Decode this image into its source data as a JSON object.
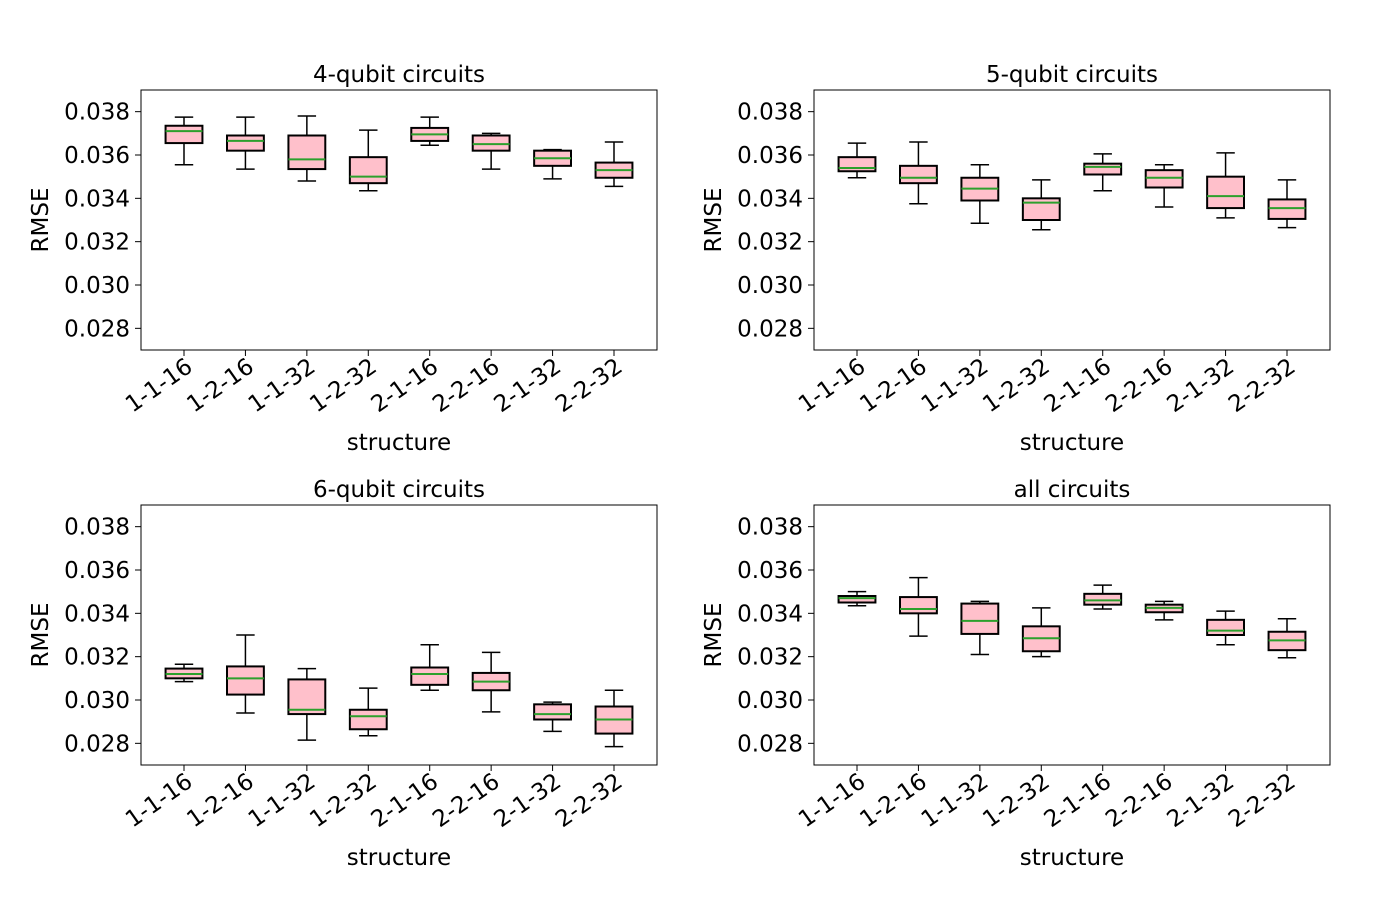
{
  "chart_data": [
    {
      "type": "box",
      "title": "4-qubit circuits",
      "xlabel": "structure",
      "ylabel": "RMSE",
      "ylim": [
        0.027,
        0.039
      ],
      "yticks": [
        "0.028",
        "0.030",
        "0.032",
        "0.034",
        "0.036",
        "0.038"
      ],
      "categories": [
        "1-1-16",
        "1-2-16",
        "1-1-32",
        "1-2-32",
        "2-1-16",
        "2-2-16",
        "2-1-32",
        "2-2-32"
      ],
      "boxes": [
        {
          "whislo": 0.03555,
          "q1": 0.03655,
          "med": 0.0371,
          "q3": 0.03735,
          "whishi": 0.03775
        },
        {
          "whislo": 0.03535,
          "q1": 0.0362,
          "med": 0.03665,
          "q3": 0.0369,
          "whishi": 0.03775
        },
        {
          "whislo": 0.0348,
          "q1": 0.03535,
          "med": 0.0358,
          "q3": 0.0369,
          "whishi": 0.0378
        },
        {
          "whislo": 0.03435,
          "q1": 0.0347,
          "med": 0.035,
          "q3": 0.0359,
          "whishi": 0.03715
        },
        {
          "whislo": 0.03645,
          "q1": 0.03665,
          "med": 0.03695,
          "q3": 0.03725,
          "whishi": 0.03775
        },
        {
          "whislo": 0.03535,
          "q1": 0.0362,
          "med": 0.0365,
          "q3": 0.0369,
          "whishi": 0.037
        },
        {
          "whislo": 0.0349,
          "q1": 0.0355,
          "med": 0.03585,
          "q3": 0.0362,
          "whishi": 0.03625
        },
        {
          "whislo": 0.03455,
          "q1": 0.03495,
          "med": 0.0353,
          "q3": 0.03565,
          "whishi": 0.0366
        }
      ],
      "box_color": "#ffc0cb",
      "median_color": "#2ca02c"
    },
    {
      "type": "box",
      "title": "5-qubit circuits",
      "xlabel": "structure",
      "ylabel": "RMSE",
      "ylim": [
        0.027,
        0.039
      ],
      "yticks": [
        "0.028",
        "0.030",
        "0.032",
        "0.034",
        "0.036",
        "0.038"
      ],
      "categories": [
        "1-1-16",
        "1-2-16",
        "1-1-32",
        "1-2-32",
        "2-1-16",
        "2-2-16",
        "2-1-32",
        "2-2-32"
      ],
      "boxes": [
        {
          "whislo": 0.03495,
          "q1": 0.03525,
          "med": 0.0354,
          "q3": 0.0359,
          "whishi": 0.03655
        },
        {
          "whislo": 0.03375,
          "q1": 0.0347,
          "med": 0.03495,
          "q3": 0.0355,
          "whishi": 0.0366
        },
        {
          "whislo": 0.03285,
          "q1": 0.0339,
          "med": 0.03445,
          "q3": 0.03495,
          "whishi": 0.03555
        },
        {
          "whislo": 0.03255,
          "q1": 0.033,
          "med": 0.0338,
          "q3": 0.034,
          "whishi": 0.03485
        },
        {
          "whislo": 0.03435,
          "q1": 0.0351,
          "med": 0.03545,
          "q3": 0.0356,
          "whishi": 0.03605
        },
        {
          "whislo": 0.0336,
          "q1": 0.0345,
          "med": 0.03495,
          "q3": 0.0353,
          "whishi": 0.03555
        },
        {
          "whislo": 0.0331,
          "q1": 0.03355,
          "med": 0.0341,
          "q3": 0.035,
          "whishi": 0.0361
        },
        {
          "whislo": 0.03265,
          "q1": 0.03305,
          "med": 0.03355,
          "q3": 0.03395,
          "whishi": 0.03485
        }
      ],
      "box_color": "#ffc0cb",
      "median_color": "#2ca02c"
    },
    {
      "type": "box",
      "title": "6-qubit circuits",
      "xlabel": "structure",
      "ylabel": "RMSE",
      "ylim": [
        0.027,
        0.039
      ],
      "yticks": [
        "0.028",
        "0.030",
        "0.032",
        "0.034",
        "0.036",
        "0.038"
      ],
      "categories": [
        "1-1-16",
        "1-2-16",
        "1-1-32",
        "1-2-32",
        "2-1-16",
        "2-2-16",
        "2-1-32",
        "2-2-32"
      ],
      "boxes": [
        {
          "whislo": 0.03085,
          "q1": 0.031,
          "med": 0.0312,
          "q3": 0.03145,
          "whishi": 0.03165
        },
        {
          "whislo": 0.0294,
          "q1": 0.03025,
          "med": 0.031,
          "q3": 0.03155,
          "whishi": 0.033
        },
        {
          "whislo": 0.02815,
          "q1": 0.02935,
          "med": 0.02955,
          "q3": 0.03095,
          "whishi": 0.03145
        },
        {
          "whislo": 0.02835,
          "q1": 0.02865,
          "med": 0.02925,
          "q3": 0.02955,
          "whishi": 0.03055
        },
        {
          "whislo": 0.03045,
          "q1": 0.0307,
          "med": 0.0312,
          "q3": 0.0315,
          "whishi": 0.03255
        },
        {
          "whislo": 0.02945,
          "q1": 0.03045,
          "med": 0.03085,
          "q3": 0.03125,
          "whishi": 0.0322
        },
        {
          "whislo": 0.02855,
          "q1": 0.0291,
          "med": 0.02935,
          "q3": 0.0298,
          "whishi": 0.0299
        },
        {
          "whislo": 0.02785,
          "q1": 0.02845,
          "med": 0.0291,
          "q3": 0.0297,
          "whishi": 0.03045
        }
      ],
      "box_color": "#ffc0cb",
      "median_color": "#2ca02c"
    },
    {
      "type": "box",
      "title": "all circuits",
      "xlabel": "structure",
      "ylabel": "RMSE",
      "ylim": [
        0.027,
        0.039
      ],
      "yticks": [
        "0.028",
        "0.030",
        "0.032",
        "0.034",
        "0.036",
        "0.038"
      ],
      "categories": [
        "1-1-16",
        "1-2-16",
        "1-1-32",
        "1-2-32",
        "2-1-16",
        "2-2-16",
        "2-1-32",
        "2-2-32"
      ],
      "boxes": [
        {
          "whislo": 0.03435,
          "q1": 0.0345,
          "med": 0.0347,
          "q3": 0.0348,
          "whishi": 0.035
        },
        {
          "whislo": 0.03295,
          "q1": 0.034,
          "med": 0.0342,
          "q3": 0.03475,
          "whishi": 0.03565
        },
        {
          "whislo": 0.0321,
          "q1": 0.03305,
          "med": 0.03365,
          "q3": 0.03445,
          "whishi": 0.03455
        },
        {
          "whislo": 0.032,
          "q1": 0.03225,
          "med": 0.03285,
          "q3": 0.0334,
          "whishi": 0.03425
        },
        {
          "whislo": 0.0342,
          "q1": 0.0344,
          "med": 0.0346,
          "q3": 0.0349,
          "whishi": 0.0353
        },
        {
          "whislo": 0.0337,
          "q1": 0.03405,
          "med": 0.03425,
          "q3": 0.0344,
          "whishi": 0.03455
        },
        {
          "whislo": 0.03255,
          "q1": 0.033,
          "med": 0.0332,
          "q3": 0.0337,
          "whishi": 0.0341
        },
        {
          "whislo": 0.03195,
          "q1": 0.0323,
          "med": 0.03275,
          "q3": 0.03315,
          "whishi": 0.03375
        }
      ],
      "box_color": "#ffc0cb",
      "median_color": "#2ca02c"
    }
  ]
}
